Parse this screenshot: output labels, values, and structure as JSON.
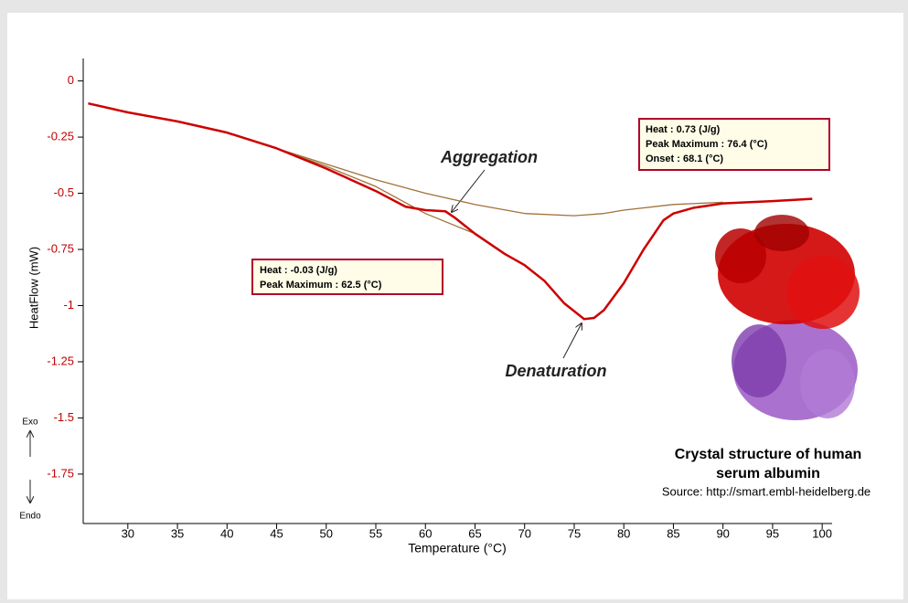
{
  "chart_data": {
    "type": "line",
    "x_label": "Temperature (°C)",
    "y_label": "HeatFlow (mW)",
    "xlim": [
      25.5,
      101
    ],
    "ylim": [
      -1.97,
      0.1
    ],
    "xticks": [
      30,
      35,
      40,
      45,
      50,
      55,
      60,
      65,
      70,
      75,
      80,
      85,
      90,
      95,
      100
    ],
    "yticks": [
      0,
      -0.25,
      -0.5,
      -0.75,
      -1,
      -1.25,
      -1.5,
      -1.75
    ],
    "series": [
      {
        "color": "#cc0000",
        "x": [
          26,
          30,
          35,
          40,
          45,
          50,
          55,
          58,
          60,
          62,
          63,
          65,
          68,
          70,
          72,
          74,
          76,
          77,
          78,
          80,
          82,
          84,
          85,
          87,
          90,
          95,
          99
        ],
        "values": [
          -0.1,
          -0.14,
          -0.18,
          -0.23,
          -0.3,
          -0.39,
          -0.49,
          -0.56,
          -0.575,
          -0.58,
          -0.61,
          -0.68,
          -0.77,
          -0.82,
          -0.89,
          -0.99,
          -1.06,
          -1.055,
          -1.02,
          -0.9,
          -0.75,
          -0.62,
          -0.59,
          -0.565,
          -0.545,
          -0.535,
          -0.525
        ]
      },
      {
        "color": "#a0723a",
        "x": [
          45,
          50,
          55,
          60,
          65,
          70,
          75,
          78,
          80,
          85,
          90
        ],
        "values": [
          -0.3,
          -0.37,
          -0.44,
          -0.5,
          -0.55,
          -0.59,
          -0.6,
          -0.59,
          -0.575,
          -0.55,
          -0.54
        ]
      },
      {
        "color": "#a0723a",
        "x": [
          45,
          50,
          55,
          60,
          65
        ],
        "values": [
          -0.3,
          -0.38,
          -0.47,
          -0.59,
          -0.68
        ]
      }
    ],
    "annotations": [
      "Aggregation",
      "Denaturation"
    ],
    "boxes": [
      {
        "lines": [
          "Heat :  0.73 (J/g)",
          "Peak Maximum :  76.4 (°C)",
          "Onset :  68.1 (°C)"
        ]
      },
      {
        "lines": [
          "Heat :  -0.03 (J/g)",
          "Peak Maximum :  62.5 (°C)"
        ]
      }
    ],
    "exo_label": "Exo",
    "endo_label": "Endo",
    "caption": [
      "Crystal structure of human",
      "serum albumin"
    ],
    "source": "Source: http://smart.embl-heidelberg.de"
  }
}
